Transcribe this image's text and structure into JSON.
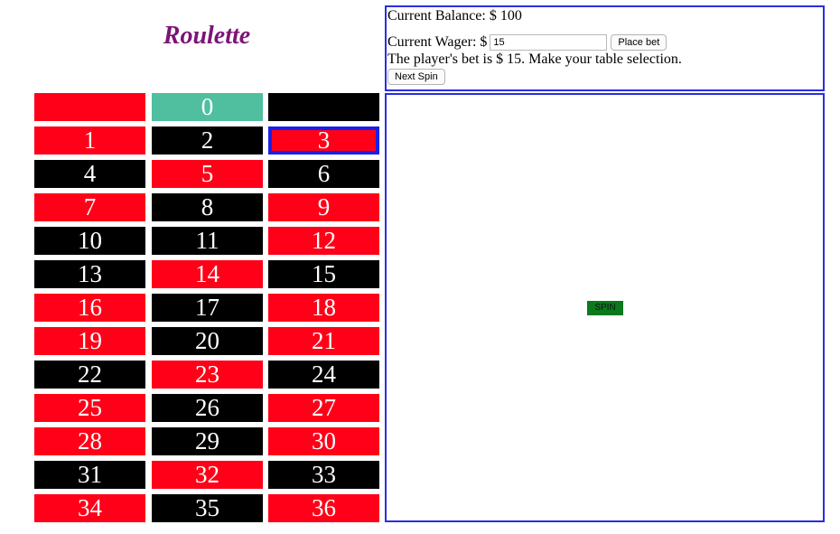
{
  "title": "Roulette",
  "balance": {
    "label": "Current Balance: $",
    "value": "100"
  },
  "wager": {
    "label": "Current Wager: $",
    "value": "15"
  },
  "place_bet_label": "Place bet",
  "message": "The player's bet is $ 15. Make your table selection.",
  "next_spin_label": "Next Spin",
  "spin_label": "SPIN",
  "colors": {
    "red": "#ff0018",
    "black": "#000000",
    "green": "#4fbfa0",
    "selection": "#1a20e8",
    "title": "#7b1478",
    "spin": "#0a7a1c"
  },
  "board": {
    "selected": "3",
    "cells": [
      {
        "label": "",
        "color": "red"
      },
      {
        "label": "0",
        "color": "green"
      },
      {
        "label": "",
        "color": "black"
      },
      {
        "label": "1",
        "color": "red"
      },
      {
        "label": "2",
        "color": "black"
      },
      {
        "label": "3",
        "color": "red"
      },
      {
        "label": "4",
        "color": "black"
      },
      {
        "label": "5",
        "color": "red"
      },
      {
        "label": "6",
        "color": "black"
      },
      {
        "label": "7",
        "color": "red"
      },
      {
        "label": "8",
        "color": "black"
      },
      {
        "label": "9",
        "color": "red"
      },
      {
        "label": "10",
        "color": "black"
      },
      {
        "label": "11",
        "color": "black"
      },
      {
        "label": "12",
        "color": "red"
      },
      {
        "label": "13",
        "color": "black"
      },
      {
        "label": "14",
        "color": "red"
      },
      {
        "label": "15",
        "color": "black"
      },
      {
        "label": "16",
        "color": "red"
      },
      {
        "label": "17",
        "color": "black"
      },
      {
        "label": "18",
        "color": "red"
      },
      {
        "label": "19",
        "color": "red"
      },
      {
        "label": "20",
        "color": "black"
      },
      {
        "label": "21",
        "color": "red"
      },
      {
        "label": "22",
        "color": "black"
      },
      {
        "label": "23",
        "color": "red"
      },
      {
        "label": "24",
        "color": "black"
      },
      {
        "label": "25",
        "color": "red"
      },
      {
        "label": "26",
        "color": "black"
      },
      {
        "label": "27",
        "color": "red"
      },
      {
        "label": "28",
        "color": "red"
      },
      {
        "label": "29",
        "color": "black"
      },
      {
        "label": "30",
        "color": "red"
      },
      {
        "label": "31",
        "color": "black"
      },
      {
        "label": "32",
        "color": "red"
      },
      {
        "label": "33",
        "color": "black"
      },
      {
        "label": "34",
        "color": "red"
      },
      {
        "label": "35",
        "color": "black"
      },
      {
        "label": "36",
        "color": "red"
      }
    ]
  }
}
